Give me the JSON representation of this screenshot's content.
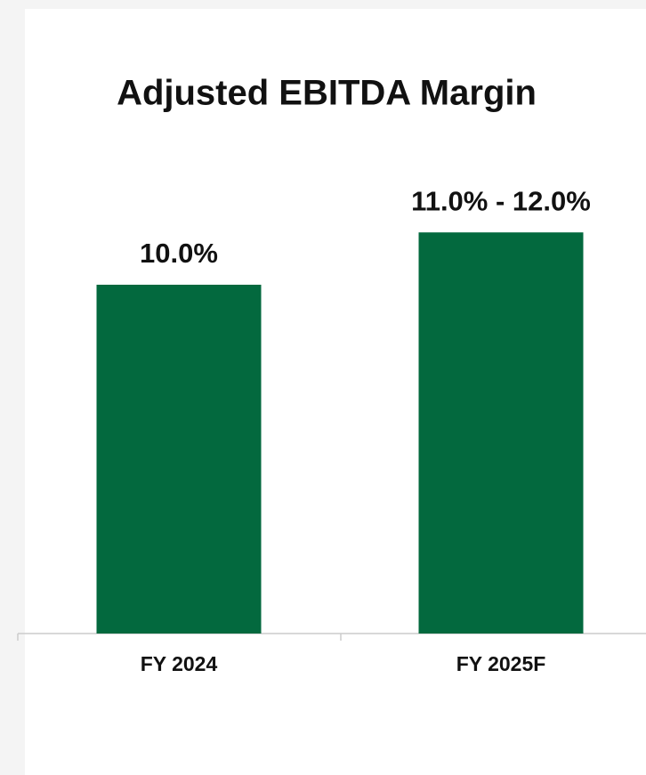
{
  "chart_data": {
    "type": "bar",
    "title": "Adjusted EBITDA Margin",
    "categories": [
      "FY 2024",
      "FY 2025F"
    ],
    "values": [
      10,
      11.5
    ],
    "value_labels": [
      "10.0%",
      "11.0% - 12.0%"
    ],
    "color": "#03693e",
    "ylim": [
      0,
      14
    ]
  }
}
